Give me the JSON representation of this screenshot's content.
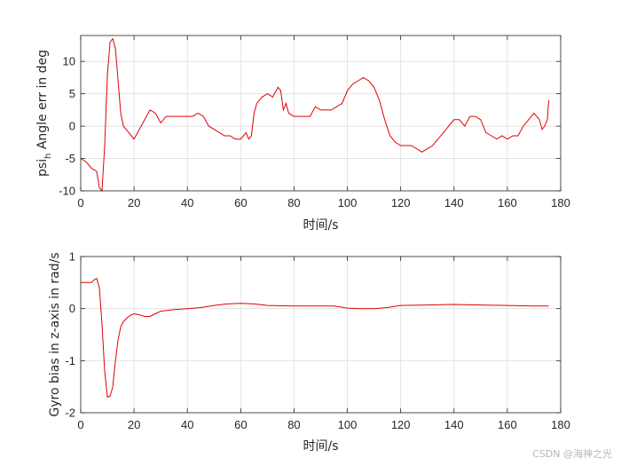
{
  "watermark": "CSDN @海神之光",
  "chart_data": [
    {
      "type": "line",
      "xlabel": "时间/s",
      "ylabel": "psi",
      "ylabel_subscript": "h",
      "ylabel_rest": " Angle err in deg",
      "xlim": [
        0,
        180
      ],
      "ylim": [
        -10,
        14
      ],
      "xticks": [
        0,
        20,
        40,
        60,
        80,
        100,
        120,
        140,
        160,
        180
      ],
      "yticks": [
        -10,
        -5,
        0,
        5,
        10
      ],
      "grid": true,
      "line_color": "#e00000",
      "series": [
        {
          "x": [
            0,
            2,
            4,
            6,
            7,
            8,
            9,
            10,
            11,
            12,
            13,
            14,
            15,
            16,
            17,
            18,
            19,
            20,
            22,
            24,
            26,
            28,
            30,
            32,
            34,
            36,
            38,
            40,
            42,
            44,
            46,
            48,
            50,
            52,
            54,
            56,
            58,
            60,
            62,
            63,
            64,
            65,
            66,
            68,
            70,
            72,
            74,
            75,
            76,
            77,
            78,
            80,
            82,
            84,
            86,
            88,
            90,
            92,
            94,
            96,
            98,
            100,
            102,
            104,
            106,
            108,
            110,
            112,
            114,
            116,
            118,
            120,
            122,
            124,
            126,
            128,
            130,
            132,
            134,
            136,
            138,
            140,
            142,
            144,
            146,
            148,
            150,
            152,
            154,
            156,
            158,
            160,
            162,
            164,
            166,
            168,
            170,
            172,
            173,
            174,
            175,
            175.5
          ],
          "y": [
            -5,
            -5.5,
            -6.5,
            -7,
            -9.5,
            -10,
            -3,
            8,
            13,
            13.5,
            12,
            7,
            2,
            0,
            -0.5,
            -1,
            -1.5,
            -2,
            -0.5,
            1,
            2.5,
            2,
            0.5,
            1.5,
            1.5,
            1.5,
            1.5,
            1.5,
            1.5,
            2,
            1.5,
            0,
            -0.5,
            -1,
            -1.5,
            -1.5,
            -2,
            -2,
            -1,
            -2,
            -1.5,
            2,
            3.5,
            4.5,
            5,
            4.5,
            6,
            5.5,
            2.5,
            3.5,
            2,
            1.5,
            1.5,
            1.5,
            1.5,
            3,
            2.5,
            2.5,
            2.5,
            3,
            3.5,
            5.5,
            6.5,
            7,
            7.5,
            7,
            6,
            4,
            1,
            -1.5,
            -2.5,
            -3,
            -3,
            -3,
            -3.5,
            -4,
            -3.5,
            -3,
            -2,
            -1,
            0,
            1,
            1,
            0,
            1.5,
            1.5,
            1,
            -1,
            -1.5,
            -2,
            -1.5,
            -2,
            -1.5,
            -1.5,
            0,
            1,
            2,
            1,
            -0.5,
            0,
            1,
            4
          ]
        }
      ]
    },
    {
      "type": "line",
      "xlabel": "时间/s",
      "ylabel": "Gyro bias in z-axis in rad/s",
      "xlim": [
        0,
        180
      ],
      "ylim": [
        -2,
        1
      ],
      "xticks": [
        0,
        20,
        40,
        60,
        80,
        100,
        120,
        140,
        160,
        180
      ],
      "yticks": [
        -2,
        -1,
        0,
        1
      ],
      "grid": true,
      "line_color": "#e00000",
      "series": [
        {
          "x": [
            0,
            2,
            4,
            5,
            6,
            7,
            8,
            9,
            10,
            11,
            12,
            13,
            14,
            15,
            16,
            17,
            18,
            19,
            20,
            22,
            24,
            26,
            28,
            30,
            35,
            40,
            45,
            50,
            55,
            60,
            65,
            70,
            80,
            90,
            95,
            100,
            105,
            110,
            115,
            120,
            130,
            140,
            150,
            160,
            170,
            175.5
          ],
          "y": [
            0.5,
            0.5,
            0.5,
            0.55,
            0.58,
            0.4,
            -0.3,
            -1.2,
            -1.7,
            -1.68,
            -1.5,
            -1.0,
            -0.6,
            -0.35,
            -0.25,
            -0.2,
            -0.15,
            -0.12,
            -0.1,
            -0.12,
            -0.15,
            -0.15,
            -0.1,
            -0.05,
            -0.02,
            0.0,
            0.02,
            0.06,
            0.09,
            0.1,
            0.09,
            0.06,
            0.05,
            0.05,
            0.05,
            0.01,
            0.0,
            0.0,
            0.02,
            0.06,
            0.07,
            0.08,
            0.07,
            0.06,
            0.05,
            0.05
          ]
        }
      ]
    }
  ]
}
